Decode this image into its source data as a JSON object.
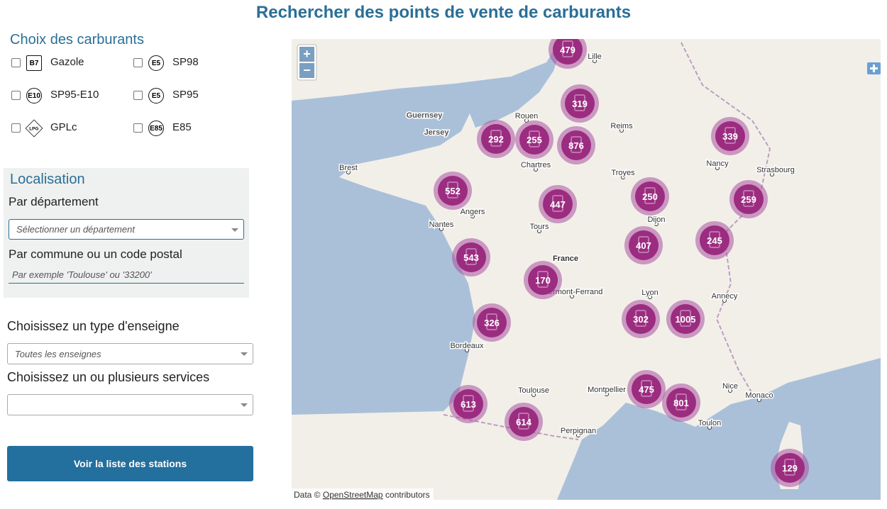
{
  "header": {
    "title": "Rechercher des points de vente de carburants"
  },
  "fuels": {
    "title": "Choix des carburants",
    "items": [
      {
        "badge": "B7",
        "label": "Gazole"
      },
      {
        "badge": "E5",
        "label": "SP98"
      },
      {
        "badge": "E10",
        "label": "SP95-E10"
      },
      {
        "badge": "E5",
        "label": "SP95"
      },
      {
        "badge": "LPG",
        "label": "GPLc"
      },
      {
        "badge": "E85",
        "label": "E85"
      }
    ]
  },
  "location": {
    "title": "Localisation",
    "by_department": "Par département",
    "department_placeholder": "Sélectionner un département",
    "by_commune": "Par commune ou un code postal",
    "commune_placeholder": "Par exemple 'Toulouse' ou '33200'"
  },
  "brand": {
    "label": "Choisissez un type d'enseigne",
    "value": "Toutes les enseignes"
  },
  "services": {
    "label": "Choisissez un ou plusieurs services"
  },
  "button": "Voir la liste des stations",
  "map": {
    "zoom_in": "+",
    "zoom_out": "−",
    "attribution_prefix": "Data ©",
    "attribution_link": "OpenStreetMap",
    "attribution_suffix": "contributors",
    "clusters": [
      479,
      319,
      292,
      255,
      876,
      339,
      552,
      447,
      250,
      259,
      407,
      245,
      543,
      170,
      326,
      302,
      1005,
      475,
      801,
      613,
      614,
      129
    ],
    "cities": [
      "Lille",
      "Rouen",
      "Reims",
      "Nancy",
      "Strasbourg",
      "Brest",
      "Chartres",
      "Troyes",
      "Angers",
      "Nantes",
      "Tours",
      "Dijon",
      "France",
      "Clermont-Ferrand",
      "Lyon",
      "Annecy",
      "Bordeaux",
      "Toulouse",
      "Montpellier",
      "Nice",
      "Monaco",
      "Toulon",
      "Perpignan",
      "Guernsey",
      "Jersey"
    ]
  }
}
